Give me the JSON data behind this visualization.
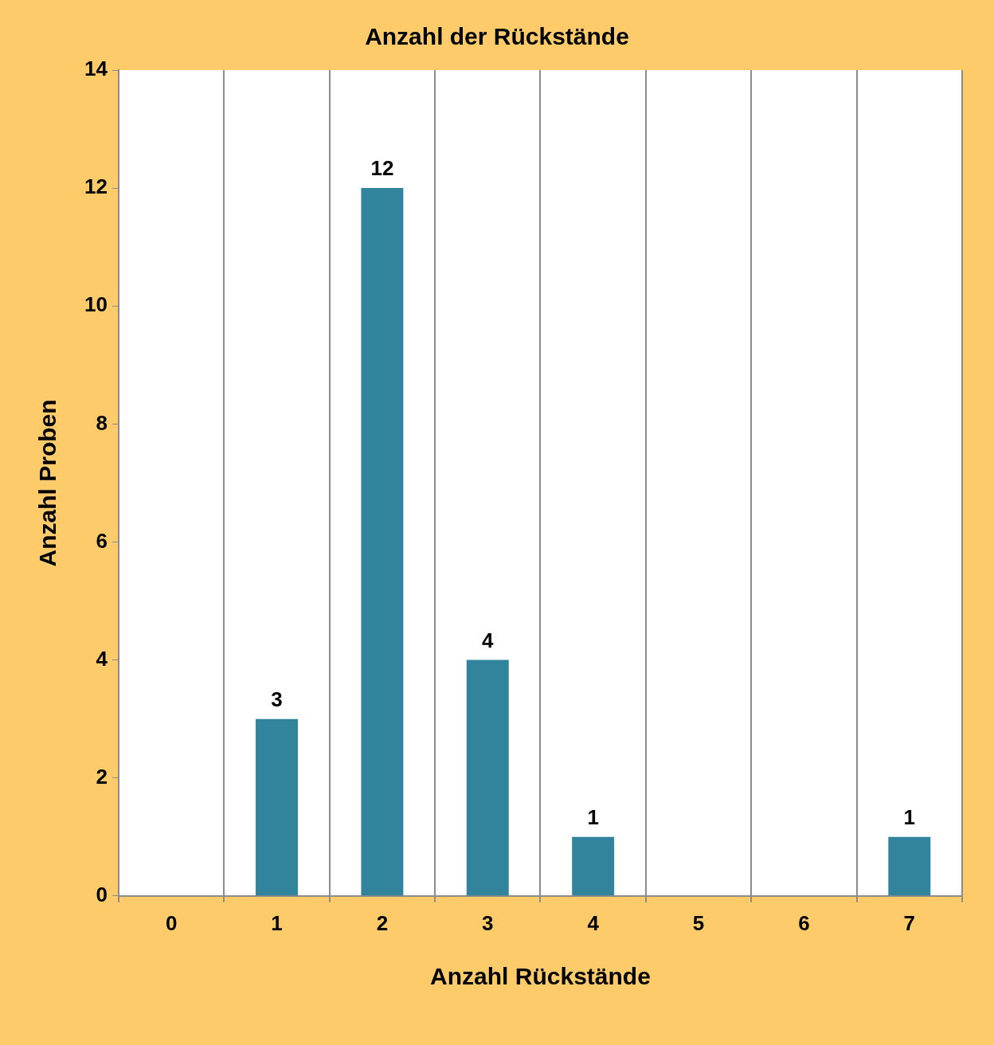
{
  "chart_data": {
    "type": "bar",
    "title": "Anzahl der Rückstände",
    "xlabel": "Anzahl Rückstände",
    "ylabel": "Anzahl Proben",
    "categories": [
      "0",
      "1",
      "2",
      "3",
      "4",
      "5",
      "6",
      "7"
    ],
    "values": [
      0,
      3,
      12,
      4,
      1,
      0,
      0,
      1
    ],
    "value_labels": [
      null,
      "3",
      "12",
      "4",
      "1",
      null,
      null,
      "1"
    ],
    "color": "#31849b",
    "ylim": [
      0,
      14
    ],
    "yticks": [
      0,
      2,
      4,
      6,
      8,
      10,
      12,
      14
    ],
    "grid": "x"
  }
}
